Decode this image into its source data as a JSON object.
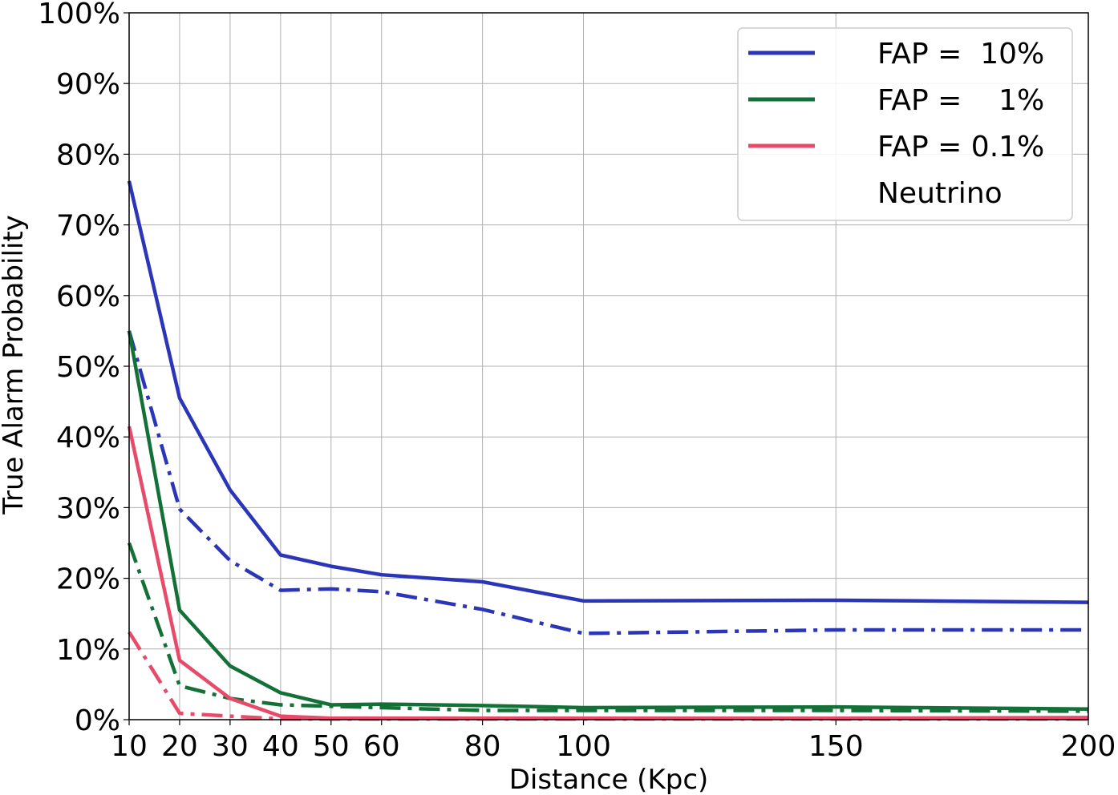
{
  "chart_data": {
    "type": "line",
    "title": "",
    "xlabel": "Distance (Kpc)",
    "ylabel": "True Alarm Probability",
    "xlim": [
      10,
      200
    ],
    "ylim": [
      0,
      100
    ],
    "x_ticks": [
      10,
      20,
      30,
      40,
      50,
      60,
      80,
      100,
      150,
      200
    ],
    "x_tick_labels": [
      "10",
      "20",
      "30",
      "40",
      "50",
      "60",
      "80",
      "100",
      "150",
      "200"
    ],
    "y_ticks": [
      0,
      10,
      20,
      30,
      40,
      50,
      60,
      70,
      80,
      90,
      100
    ],
    "y_tick_labels": [
      "0%",
      "10%",
      "20%",
      "30%",
      "40%",
      "50%",
      "60%",
      "70%",
      "80%",
      "90%",
      "100%"
    ],
    "grid": true,
    "legend_position": "top-right",
    "legend": [
      {
        "label": "FAP =  10%",
        "color": "#2b35b8"
      },
      {
        "label": "FAP =    1%",
        "color": "#137138"
      },
      {
        "label": "FAP = 0.1%",
        "color": "#e84a6a"
      },
      {
        "label": "Neutrino",
        "color": "#ffffff"
      }
    ],
    "x": [
      10,
      20,
      30,
      40,
      50,
      60,
      80,
      100,
      150,
      200
    ],
    "series": [
      {
        "style": "solid",
        "color": "#2b35b8",
        "values": [
          76.2,
          45.5,
          32.5,
          23.3,
          21.7,
          20.5,
          19.5,
          16.8,
          16.9,
          16.6
        ]
      },
      {
        "style": "dashdot",
        "color": "#2b35b8",
        "values": [
          55.0,
          29.8,
          22.5,
          18.3,
          18.5,
          18.1,
          15.6,
          12.2,
          12.7,
          12.7
        ]
      },
      {
        "style": "solid",
        "color": "#137138",
        "values": [
          55.0,
          15.5,
          7.6,
          3.8,
          2.1,
          2.2,
          2.0,
          1.7,
          1.8,
          1.5
        ]
      },
      {
        "style": "dashdot",
        "color": "#137138",
        "values": [
          25.0,
          4.8,
          3.0,
          2.1,
          1.9,
          1.7,
          1.3,
          1.3,
          1.3,
          1.2
        ]
      },
      {
        "style": "solid",
        "color": "#e84a6a",
        "values": [
          41.5,
          8.4,
          3.0,
          0.5,
          0.2,
          0.2,
          0.2,
          0.2,
          0.2,
          0.3
        ]
      },
      {
        "style": "dashdot",
        "color": "#e84a6a",
        "values": [
          12.4,
          0.9,
          0.5,
          0.1,
          0.1,
          0.1,
          0.1,
          0.1,
          0.1,
          0.1
        ]
      }
    ]
  }
}
